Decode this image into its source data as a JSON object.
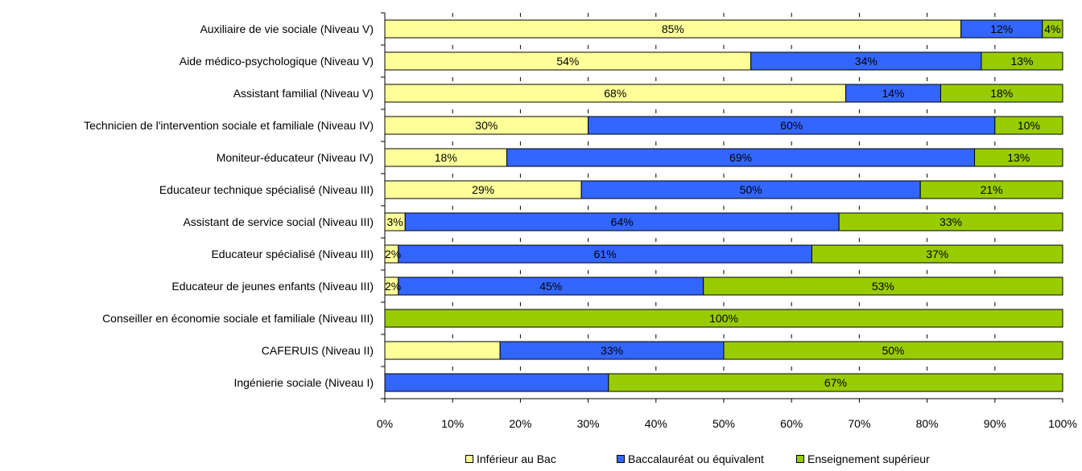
{
  "chart_data": {
    "type": "bar",
    "orientation": "horizontal",
    "stacked": "percent",
    "title": "",
    "xlabel": "",
    "ylabel": "",
    "xlim": [
      0,
      100
    ],
    "x_ticks": [
      "0%",
      "10%",
      "20%",
      "30%",
      "40%",
      "50%",
      "60%",
      "70%",
      "80%",
      "90%",
      "100%"
    ],
    "grid": false,
    "legend_position": "bottom",
    "categories": [
      "Auxiliaire de vie sociale (Niveau V)",
      "Aide médico-psychologique (Niveau V)",
      "Assistant familial (Niveau V)",
      "Technicien de l'intervention sociale et familiale (Niveau IV)",
      "Moniteur-éducateur (Niveau IV)",
      "Educateur technique spécialisé (Niveau III)",
      "Assistant de service social (Niveau III)",
      "Educateur spécialisé (Niveau III)",
      "Educateur de jeunes enfants (Niveau III)",
      "Conseiller en économie sociale et familiale (Niveau III)",
      "CAFERUIS (Niveau II)",
      "Ingénierie sociale (Niveau I)"
    ],
    "series": [
      {
        "name": "Inférieur au Bac",
        "color": "#FFFF99",
        "values": [
          85,
          54,
          68,
          30,
          18,
          29,
          3,
          2,
          2,
          0,
          17,
          0
        ],
        "labels": [
          "85%",
          "54%",
          "68%",
          "30%",
          "18%",
          "29%",
          "3%",
          "2%",
          "2%",
          "",
          "",
          ""
        ]
      },
      {
        "name": "Baccalauréat ou équivalent",
        "color": "#3366FF",
        "values": [
          12,
          34,
          14,
          60,
          69,
          50,
          64,
          61,
          45,
          0,
          33,
          33
        ],
        "labels": [
          "12%",
          "34%",
          "14%",
          "60%",
          "69%",
          "50%",
          "64%",
          "61%",
          "45%",
          "",
          "33%",
          ""
        ]
      },
      {
        "name": "Enseignement supérieur",
        "color": "#99CC00",
        "values": [
          4,
          13,
          18,
          10,
          13,
          21,
          33,
          37,
          53,
          100,
          50,
          67
        ],
        "labels": [
          "4%",
          "13%",
          "18%",
          "10%",
          "13%",
          "21%",
          "33%",
          "37%",
          "53%",
          "100%",
          "50%",
          "67%"
        ]
      }
    ]
  }
}
